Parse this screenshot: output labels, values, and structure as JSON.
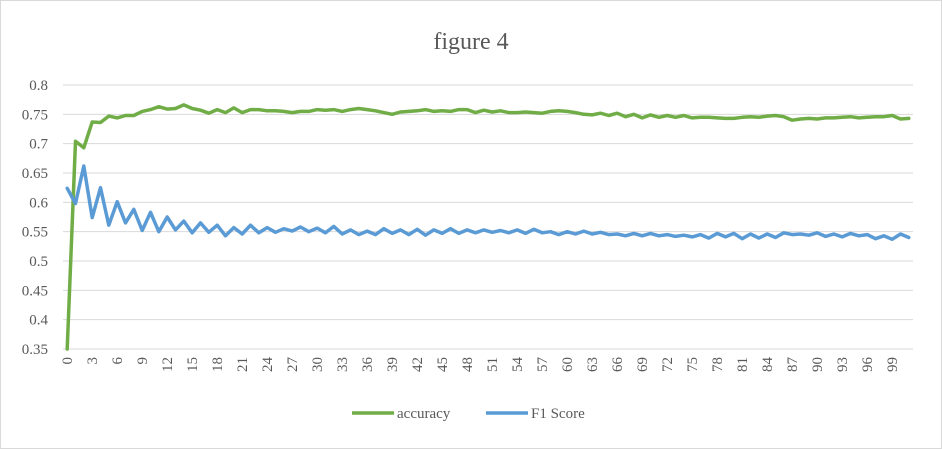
{
  "chart_data": {
    "type": "line",
    "title": "figure 4",
    "xlabel": "",
    "ylabel": "",
    "x": [
      0,
      1,
      2,
      3,
      4,
      5,
      6,
      7,
      8,
      9,
      10,
      11,
      12,
      13,
      14,
      15,
      16,
      17,
      18,
      19,
      20,
      21,
      22,
      23,
      24,
      25,
      26,
      27,
      28,
      29,
      30,
      31,
      32,
      33,
      34,
      35,
      36,
      37,
      38,
      39,
      40,
      41,
      42,
      43,
      44,
      45,
      46,
      47,
      48,
      49,
      50,
      51,
      52,
      53,
      54,
      55,
      56,
      57,
      58,
      59,
      60,
      61,
      62,
      63,
      64,
      65,
      66,
      67,
      68,
      69,
      70,
      71,
      72,
      73,
      74,
      75,
      76,
      77,
      78,
      79,
      80,
      81,
      82,
      83,
      84,
      85,
      86,
      87,
      88,
      89,
      90,
      91,
      92,
      93,
      94,
      95,
      96,
      97,
      98,
      99,
      100,
      101
    ],
    "xticks": [
      0,
      3,
      6,
      9,
      12,
      15,
      18,
      21,
      24,
      27,
      30,
      33,
      36,
      39,
      42,
      45,
      48,
      51,
      54,
      57,
      60,
      63,
      66,
      69,
      72,
      75,
      78,
      81,
      84,
      87,
      90,
      93,
      96,
      99
    ],
    "ylim": [
      0.35,
      0.8
    ],
    "yticks": [
      0.35,
      0.4,
      0.45,
      0.5,
      0.55,
      0.6,
      0.65,
      0.7,
      0.75,
      0.8
    ],
    "legend_position": "bottom",
    "grid": true,
    "series": [
      {
        "name": "accuracy",
        "color": "#70ad47",
        "values": [
          0.35,
          0.704,
          0.693,
          0.737,
          0.736,
          0.747,
          0.744,
          0.748,
          0.748,
          0.755,
          0.758,
          0.763,
          0.759,
          0.76,
          0.766,
          0.76,
          0.757,
          0.752,
          0.758,
          0.753,
          0.761,
          0.753,
          0.758,
          0.758,
          0.756,
          0.756,
          0.755,
          0.753,
          0.755,
          0.755,
          0.758,
          0.757,
          0.758,
          0.755,
          0.758,
          0.76,
          0.758,
          0.756,
          0.753,
          0.75,
          0.754,
          0.755,
          0.756,
          0.758,
          0.755,
          0.756,
          0.755,
          0.758,
          0.758,
          0.753,
          0.757,
          0.754,
          0.756,
          0.753,
          0.753,
          0.754,
          0.753,
          0.752,
          0.755,
          0.756,
          0.755,
          0.753,
          0.75,
          0.749,
          0.752,
          0.748,
          0.752,
          0.746,
          0.75,
          0.744,
          0.749,
          0.745,
          0.748,
          0.745,
          0.748,
          0.744,
          0.745,
          0.745,
          0.744,
          0.743,
          0.743,
          0.745,
          0.746,
          0.745,
          0.747,
          0.748,
          0.746,
          0.74,
          0.742,
          0.743,
          0.742,
          0.744,
          0.744,
          0.745,
          0.746,
          0.744,
          0.745,
          0.746,
          0.746,
          0.748,
          0.742,
          0.743
        ]
      },
      {
        "name": "F1 Score",
        "color": "#5b9bd5",
        "values": [
          0.624,
          0.598,
          0.662,
          0.574,
          0.625,
          0.561,
          0.601,
          0.565,
          0.588,
          0.552,
          0.583,
          0.55,
          0.575,
          0.553,
          0.568,
          0.548,
          0.565,
          0.549,
          0.561,
          0.543,
          0.557,
          0.546,
          0.561,
          0.548,
          0.557,
          0.549,
          0.555,
          0.551,
          0.558,
          0.55,
          0.556,
          0.548,
          0.559,
          0.546,
          0.553,
          0.545,
          0.551,
          0.545,
          0.555,
          0.547,
          0.553,
          0.545,
          0.554,
          0.544,
          0.553,
          0.547,
          0.555,
          0.547,
          0.553,
          0.548,
          0.553,
          0.549,
          0.552,
          0.548,
          0.553,
          0.547,
          0.554,
          0.548,
          0.55,
          0.545,
          0.55,
          0.546,
          0.551,
          0.546,
          0.549,
          0.545,
          0.546,
          0.543,
          0.547,
          0.543,
          0.547,
          0.543,
          0.545,
          0.542,
          0.544,
          0.541,
          0.545,
          0.539,
          0.547,
          0.541,
          0.547,
          0.538,
          0.546,
          0.539,
          0.546,
          0.54,
          0.548,
          0.545,
          0.546,
          0.544,
          0.548,
          0.542,
          0.546,
          0.541,
          0.547,
          0.543,
          0.545,
          0.538,
          0.543,
          0.537,
          0.546,
          0.54
        ]
      }
    ]
  }
}
